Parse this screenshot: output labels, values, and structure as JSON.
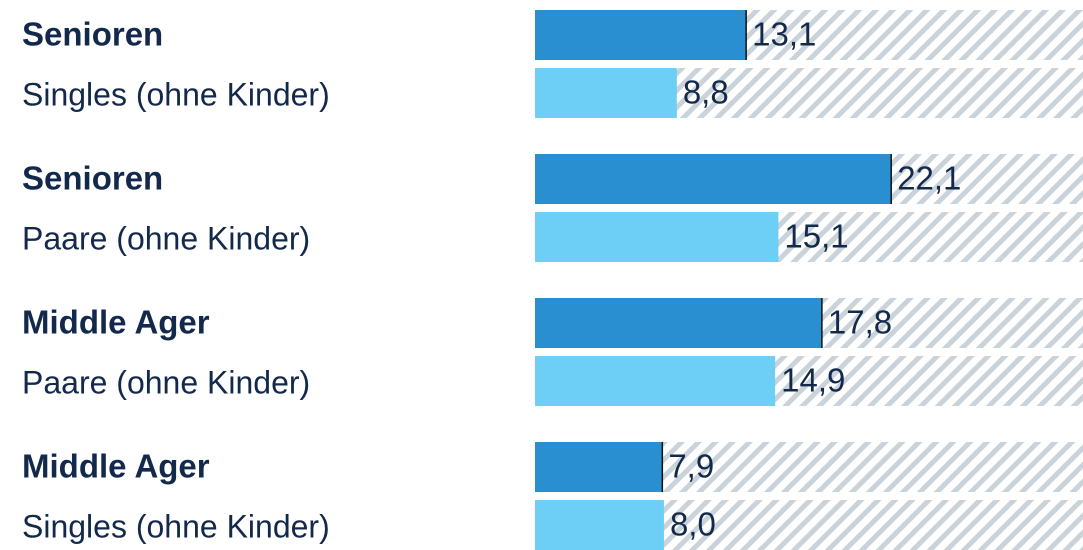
{
  "chart_data": {
    "type": "bar",
    "orientation": "horizontal",
    "categories": [
      [
        "Senioren",
        "Singles (ohne Kinder)"
      ],
      [
        "Senioren",
        "Paare (ohne Kinder)"
      ],
      [
        "Middle Ager",
        "Paare (ohne Kinder)"
      ],
      [
        "Middle Ager",
        "Singles (ohne Kinder)"
      ]
    ],
    "series": [
      {
        "color": "#2a8fd0",
        "values": [
          13.1,
          22.1,
          17.8,
          7.9
        ],
        "value_labels": [
          "13,1",
          "22,1",
          "17,8",
          "7,9"
        ]
      },
      {
        "color": "#6dcff6",
        "values": [
          8.8,
          15.1,
          14.9,
          8.0
        ],
        "value_labels": [
          "8,8",
          "15,1",
          "14,9",
          "8,0"
        ]
      }
    ],
    "xlim": [
      0,
      34
    ]
  }
}
